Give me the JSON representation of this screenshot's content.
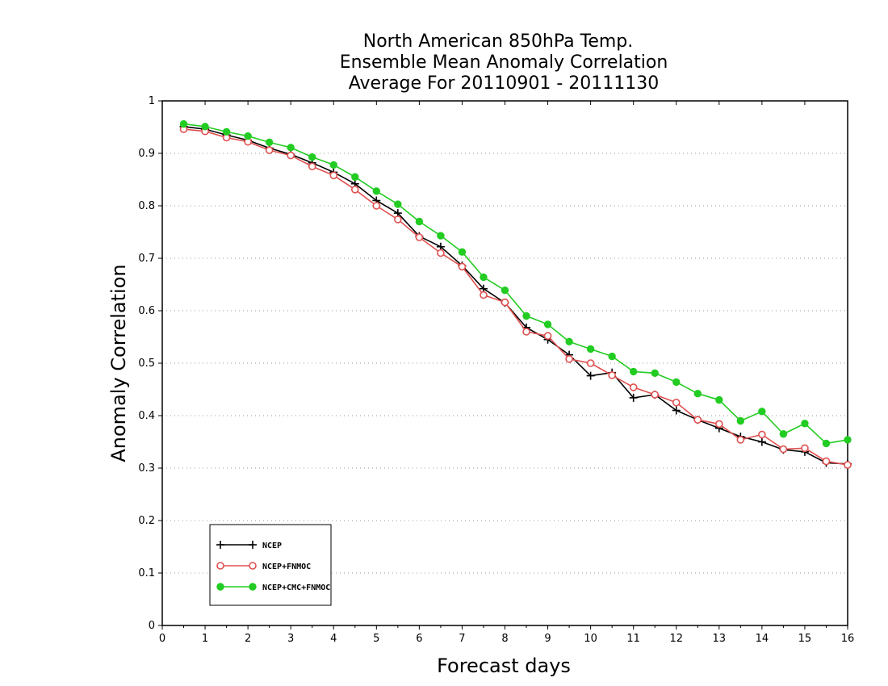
{
  "chart_data": {
    "type": "line",
    "title": [
      "North American 850hPa Temp.",
      "Ensemble Mean Anomaly Correlation",
      "Average For 20110901 - 20111130"
    ],
    "xlabel": "Forecast days",
    "ylabel": "Anomaly Correlation",
    "xlim": [
      0,
      16
    ],
    "ylim": [
      0,
      1
    ],
    "x_ticks": [
      "0",
      "1",
      "2",
      "3",
      "4",
      "5",
      "6",
      "7",
      "8",
      "9",
      "10",
      "11",
      "12",
      "13",
      "14",
      "15",
      "16"
    ],
    "y_ticks": [
      "0",
      "0.1",
      "0.2",
      "0.3",
      "0.4",
      "0.5",
      "0.6",
      "0.7",
      "0.8",
      "0.9",
      "1"
    ],
    "grid": "horizontal dotted",
    "legend_position": "bottom-left",
    "x": [
      0.5,
      1,
      1.5,
      2,
      2.5,
      3,
      3.5,
      4,
      4.5,
      5,
      5.5,
      6,
      6.5,
      7,
      7.5,
      8,
      8.5,
      9,
      9.5,
      10,
      10.5,
      11,
      11.5,
      12,
      12.5,
      13,
      13.5,
      14,
      14.5,
      15,
      15.5,
      16
    ],
    "series": [
      {
        "name": "NCEP",
        "color": "#000000",
        "marker": "plus",
        "values": [
          0.951,
          0.946,
          0.935,
          0.925,
          0.91,
          0.898,
          0.882,
          0.864,
          0.842,
          0.81,
          0.786,
          0.742,
          0.722,
          0.686,
          0.642,
          0.615,
          0.568,
          0.545,
          0.516,
          0.476,
          0.482,
          0.434,
          0.44,
          0.41,
          0.392,
          0.376,
          0.36,
          0.35,
          0.335,
          0.331,
          0.31,
          0.308
        ]
      },
      {
        "name": "NCEP+FNMOC",
        "color": "#e05050",
        "marker": "open-circle",
        "values": [
          0.946,
          0.942,
          0.93,
          0.922,
          0.906,
          0.896,
          0.875,
          0.858,
          0.831,
          0.8,
          0.774,
          0.74,
          0.71,
          0.684,
          0.63,
          0.616,
          0.56,
          0.552,
          0.508,
          0.5,
          0.477,
          0.454,
          0.44,
          0.425,
          0.392,
          0.384,
          0.354,
          0.364,
          0.336,
          0.338,
          0.313,
          0.306
        ]
      },
      {
        "name": "NCEP+CMC+FNMOC",
        "color": "#22cc22",
        "marker": "filled-circle",
        "values": [
          0.956,
          0.951,
          0.941,
          0.933,
          0.921,
          0.911,
          0.893,
          0.878,
          0.855,
          0.828,
          0.803,
          0.77,
          0.743,
          0.712,
          0.664,
          0.639,
          0.59,
          0.574,
          0.541,
          0.527,
          0.513,
          0.484,
          0.481,
          0.464,
          0.442,
          0.43,
          0.39,
          0.408,
          0.365,
          0.385,
          0.347,
          0.354
        ]
      }
    ]
  }
}
